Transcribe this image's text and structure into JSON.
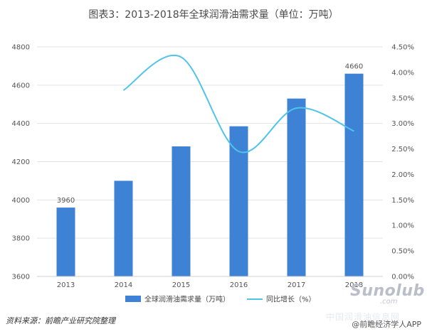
{
  "title": "图表3：2013-2018年全球润滑油需求量（单位：万吨）",
  "source": "资料来源：前瞻产业研究院整理",
  "watermark_logo": "Sunolub",
  "watermark_com": ".com",
  "watermark_cn": "中国润滑油信息网",
  "app_badge": "@前瞻经济学人APP",
  "colors": {
    "bar": "#3e82d6",
    "line": "#4fc4ea",
    "grid": "#e3e3e3"
  },
  "chart_data": {
    "type": "bar",
    "title": "图表3：2013-2018年全球润滑油需求量（单位：万吨）",
    "categories": [
      "2013",
      "2014",
      "2015",
      "2016",
      "2017",
      "2018"
    ],
    "series": [
      {
        "name": "全球润滑油需求量（万吨）",
        "type": "bar",
        "axis": "left",
        "values": [
          3960,
          4100,
          4280,
          4385,
          4530,
          4660
        ],
        "data_labels": [
          "3960",
          "",
          "",
          "",
          "",
          "4660"
        ]
      },
      {
        "name": "同比增长（%）",
        "type": "line",
        "axis": "right",
        "values": [
          null,
          3.65,
          4.3,
          2.45,
          3.3,
          2.85
        ]
      }
    ],
    "y_left": {
      "ylim": [
        3600,
        4800
      ],
      "ticks": [
        "3600",
        "3800",
        "4000",
        "4200",
        "4400",
        "4600",
        "4800"
      ]
    },
    "y_right": {
      "ylim": [
        0,
        4.5
      ],
      "ticks": [
        "0.00%",
        "0.50%",
        "1.00%",
        "1.50%",
        "2.00%",
        "2.50%",
        "3.00%",
        "3.50%",
        "4.00%",
        "4.50%"
      ]
    },
    "grid": true,
    "legend": "bottom"
  }
}
